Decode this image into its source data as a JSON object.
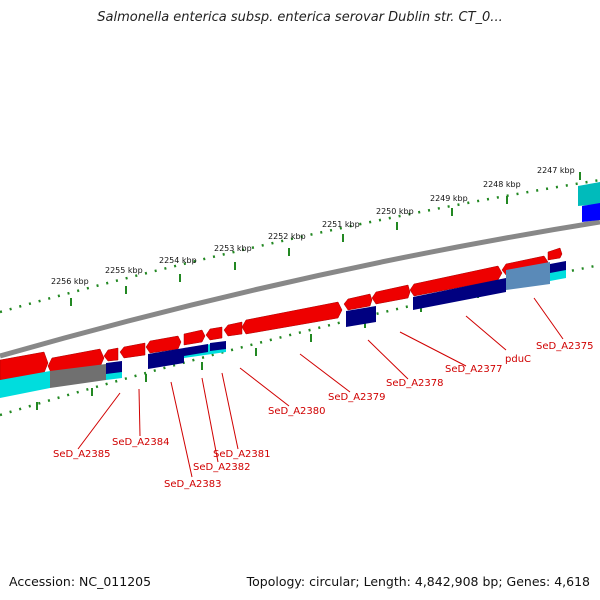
{
  "title": "Salmonella enterica subsp. enterica serovar Dublin str. CT_0...",
  "footer": {
    "accession": "Accession: NC_011205",
    "summary": "Topology: circular; Length: 4,842,908 bp; Genes: 4,618"
  },
  "kbp_labels": [
    "2247 kbp",
    "2248 kbp",
    "2249 kbp",
    "2250 kbp",
    "2251 kbp",
    "2252 kbp",
    "2253 kbp",
    "2254 kbp",
    "2255 kbp",
    "2256 kbp"
  ],
  "gene_labels": [
    "SeD_A2375",
    "pduC",
    "SeD_A2377",
    "SeD_A2378",
    "SeD_A2379",
    "SeD_A2380",
    "SeD_A2381",
    "SeD_A2382",
    "SeD_A2383",
    "SeD_A2384",
    "SeD_A2385"
  ],
  "colors": {
    "gene_forward": "#ee0000",
    "gene_reverse": "#000080",
    "cds_cyan": "#00dddd",
    "backbone": "#888888",
    "tick": "#228822",
    "label": "#d00000"
  }
}
